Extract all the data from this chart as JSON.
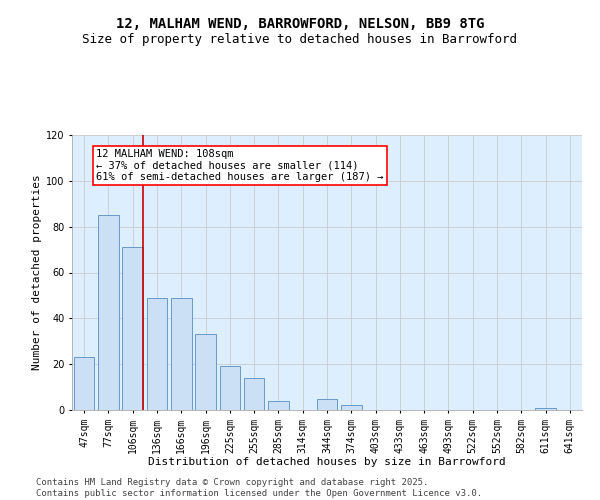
{
  "title_line1": "12, MALHAM WEND, BARROWFORD, NELSON, BB9 8TG",
  "title_line2": "Size of property relative to detached houses in Barrowford",
  "xlabel": "Distribution of detached houses by size in Barrowford",
  "ylabel": "Number of detached properties",
  "categories": [
    "47sqm",
    "77sqm",
    "106sqm",
    "136sqm",
    "166sqm",
    "196sqm",
    "225sqm",
    "255sqm",
    "285sqm",
    "314sqm",
    "344sqm",
    "374sqm",
    "403sqm",
    "433sqm",
    "463sqm",
    "493sqm",
    "522sqm",
    "552sqm",
    "582sqm",
    "611sqm",
    "641sqm"
  ],
  "values": [
    23,
    85,
    71,
    49,
    49,
    33,
    19,
    14,
    4,
    0,
    5,
    2,
    0,
    0,
    0,
    0,
    0,
    0,
    0,
    1,
    0
  ],
  "bar_color": "#cce0f5",
  "bar_edge_color": "#6699cc",
  "red_line_index": 2,
  "annotation_text": "12 MALHAM WEND: 108sqm\n← 37% of detached houses are smaller (114)\n61% of semi-detached houses are larger (187) →",
  "annotation_box_facecolor": "white",
  "annotation_box_edgecolor": "red",
  "red_line_color": "#cc0000",
  "ylim": [
    0,
    120
  ],
  "yticks": [
    0,
    20,
    40,
    60,
    80,
    100,
    120
  ],
  "grid_color": "#cccccc",
  "background_color": "#ddeeff",
  "footer_line1": "Contains HM Land Registry data © Crown copyright and database right 2025.",
  "footer_line2": "Contains public sector information licensed under the Open Government Licence v3.0.",
  "title_fontsize": 10,
  "subtitle_fontsize": 9,
  "axis_label_fontsize": 8,
  "tick_fontsize": 7,
  "annotation_fontsize": 7.5,
  "footer_fontsize": 6.5
}
